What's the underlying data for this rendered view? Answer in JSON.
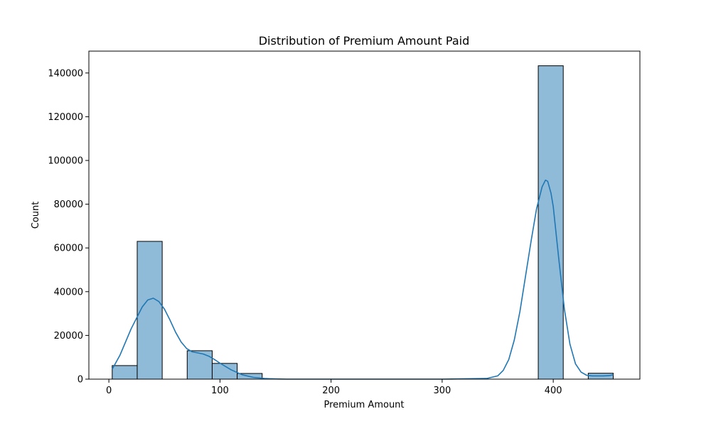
{
  "chart_data": {
    "type": "histogram",
    "title": "Distribution of Premium Amount Paid",
    "xlabel": "Premium Amount",
    "ylabel": "Count",
    "xlim": [
      -18,
      478
    ],
    "ylim": [
      0,
      150000
    ],
    "xticks": [
      0,
      100,
      200,
      300,
      400
    ],
    "xtick_labels": [
      "0",
      "100",
      "200",
      "300",
      "400"
    ],
    "yticks": [
      0,
      20000,
      40000,
      60000,
      80000,
      100000,
      120000,
      140000
    ],
    "ytick_labels": [
      "0",
      "20000",
      "40000",
      "60000",
      "80000",
      "100000",
      "120000",
      "140000"
    ],
    "bins": [
      {
        "start": 3,
        "end": 25.5,
        "count": 6200
      },
      {
        "start": 25.5,
        "end": 48,
        "count": 63000
      },
      {
        "start": 70.5,
        "end": 93,
        "count": 13000
      },
      {
        "start": 93,
        "end": 115.5,
        "count": 7200
      },
      {
        "start": 115.5,
        "end": 138,
        "count": 2600
      },
      {
        "start": 386.5,
        "end": 409,
        "count": 143300
      },
      {
        "start": 431.5,
        "end": 454,
        "count": 2700
      }
    ],
    "kde": {
      "x": [
        3,
        10,
        20,
        30,
        35,
        40,
        45,
        50,
        55,
        60,
        65,
        70,
        75,
        80,
        85,
        90,
        95,
        100,
        110,
        120,
        130,
        140,
        150,
        160,
        200,
        250,
        300,
        340,
        350,
        355,
        360,
        365,
        370,
        375,
        380,
        385,
        390,
        393,
        395,
        398,
        400,
        405,
        410,
        415,
        420,
        425,
        430,
        435,
        440,
        445,
        450,
        454
      ],
      "y": [
        4500,
        11000,
        23000,
        33000,
        36200,
        37000,
        35500,
        32000,
        27000,
        21500,
        17000,
        14000,
        12500,
        12000,
        11500,
        10500,
        9000,
        7300,
        4300,
        2000,
        800,
        300,
        100,
        0,
        0,
        0,
        0,
        300,
        1500,
        4000,
        9000,
        18000,
        31000,
        47000,
        63000,
        78000,
        88000,
        91000,
        90500,
        85000,
        79000,
        55000,
        32000,
        16000,
        7000,
        3200,
        1800,
        1500,
        1500,
        1500,
        1600,
        2000
      ]
    },
    "colors": {
      "bar_fill": "#8fbbd9",
      "bar_edge": "#000000",
      "kde_line": "#1f77b4",
      "axes": "#000000"
    }
  }
}
